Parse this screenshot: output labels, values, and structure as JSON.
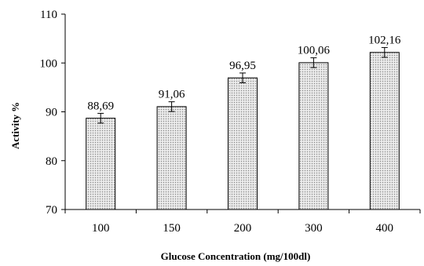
{
  "chart_data": {
    "type": "bar",
    "title": "",
    "xlabel": "Glucose Concentration (mg/100dl)",
    "ylabel": "Activity %",
    "categories": [
      "100",
      "150",
      "200",
      "300",
      "400"
    ],
    "series": [
      {
        "values": [
          88.69,
          91.06,
          96.95,
          100.06,
          102.16
        ],
        "value_labels": [
          "88,69",
          "91,06",
          "96,95",
          "100,06",
          "102,16"
        ],
        "error": [
          1.0,
          1.0,
          1.0,
          1.0,
          1.0
        ]
      }
    ],
    "ylim": [
      70,
      110
    ],
    "yticks": [
      "70",
      "80",
      "90",
      "100",
      "110"
    ],
    "grid": false,
    "legend": "none",
    "colors": {
      "bar_fill": "#e6e6e6",
      "bar_dot": "#8a8a8a",
      "stroke": "#000000"
    }
  }
}
